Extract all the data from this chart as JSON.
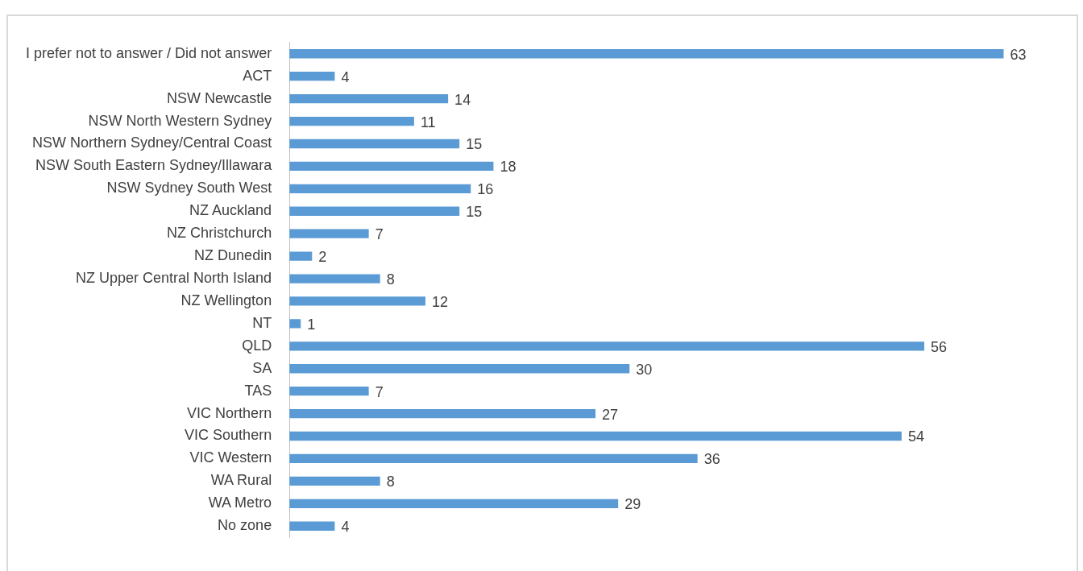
{
  "chart_data": {
    "type": "bar",
    "orientation": "horizontal",
    "categories": [
      "I prefer not to answer / Did not answer",
      "ACT",
      "NSW Newcastle",
      "NSW North Western Sydney",
      "NSW Northern Sydney/Central Coast",
      "NSW South Eastern Sydney/Illawara",
      "NSW Sydney South West",
      "NZ Auckland",
      "NZ Christchurch",
      "NZ Dunedin",
      "NZ Upper Central North Island",
      "NZ Wellington",
      "NT",
      "QLD",
      "SA",
      "TAS",
      "VIC Northern",
      "VIC Southern",
      "VIC Western",
      "WA Rural",
      "WA Metro",
      "No zone"
    ],
    "values": [
      63,
      4,
      14,
      11,
      15,
      18,
      16,
      15,
      7,
      2,
      8,
      12,
      1,
      56,
      30,
      7,
      27,
      54,
      36,
      8,
      29,
      4
    ],
    "color": "#5b9bd5",
    "data_labels": true,
    "grid": false,
    "legend": false,
    "tick_labels": "y"
  }
}
